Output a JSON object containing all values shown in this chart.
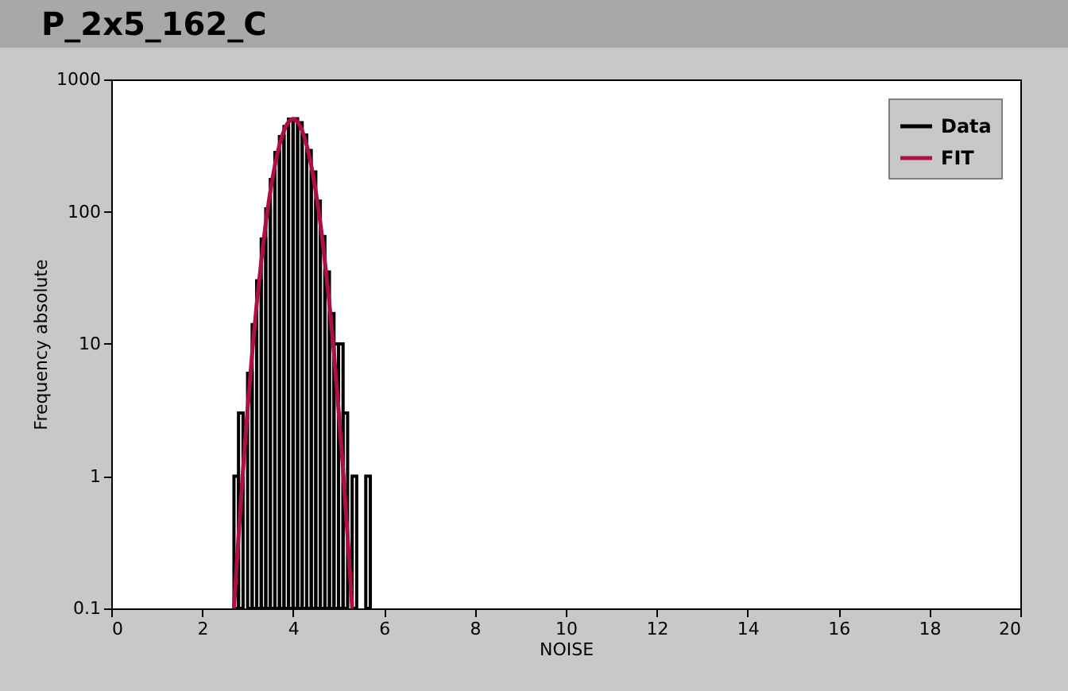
{
  "chart_data": {
    "type": "histogram",
    "title": "P_2x5_162_C",
    "xlabel": "NOISE",
    "ylabel": "Frequency absolute",
    "log": "y",
    "grid": false,
    "legend": "top right",
    "xlim": [
      0,
      20
    ],
    "xticks": [
      0,
      2,
      4,
      6,
      8,
      10,
      12,
      14,
      16,
      18,
      20
    ],
    "ylim": [
      0.1,
      1000
    ],
    "yticks": [
      0.1,
      1,
      10,
      100,
      1000
    ],
    "series": [
      {
        "name": "Data",
        "color": "#000000",
        "bins": [
          2.7,
          2.8,
          2.9,
          3.0,
          3.1,
          3.2,
          3.3,
          3.4,
          3.5,
          3.6,
          3.7,
          3.8,
          3.9,
          4.0,
          4.1,
          4.2,
          4.3,
          4.4,
          4.5,
          4.6,
          4.7,
          4.8,
          4.9,
          5.0,
          5.1,
          5.2,
          5.3,
          5.4,
          5.5,
          5.6,
          5.7,
          5.8
        ],
        "values": [
          1,
          3,
          null,
          6,
          14,
          30,
          62,
          105,
          175,
          280,
          370,
          440,
          500,
          505,
          470,
          380,
          290,
          200,
          120,
          65,
          35,
          17,
          10,
          10,
          3,
          null,
          1,
          null,
          null,
          1,
          null
        ]
      },
      {
        "name": "FIT",
        "type": "line",
        "color": "#b01040",
        "x": [
          2.7,
          2.8,
          2.9,
          3.0,
          3.1,
          3.2,
          3.3,
          3.4,
          3.5,
          3.6,
          3.7,
          3.8,
          3.9,
          4.0,
          4.1,
          4.2,
          4.3,
          4.4,
          4.5,
          4.6,
          4.7,
          4.8,
          4.9,
          5.0,
          5.1,
          5.2,
          5.3
        ],
        "values": [
          0.1,
          0.35,
          1.12,
          3.2,
          8.5,
          20,
          42,
          82,
          142,
          223,
          318,
          409,
          476,
          500,
          476,
          409,
          318,
          223,
          142,
          82,
          42,
          20,
          8.5,
          3.2,
          1.12,
          0.35,
          0.1
        ]
      }
    ]
  }
}
